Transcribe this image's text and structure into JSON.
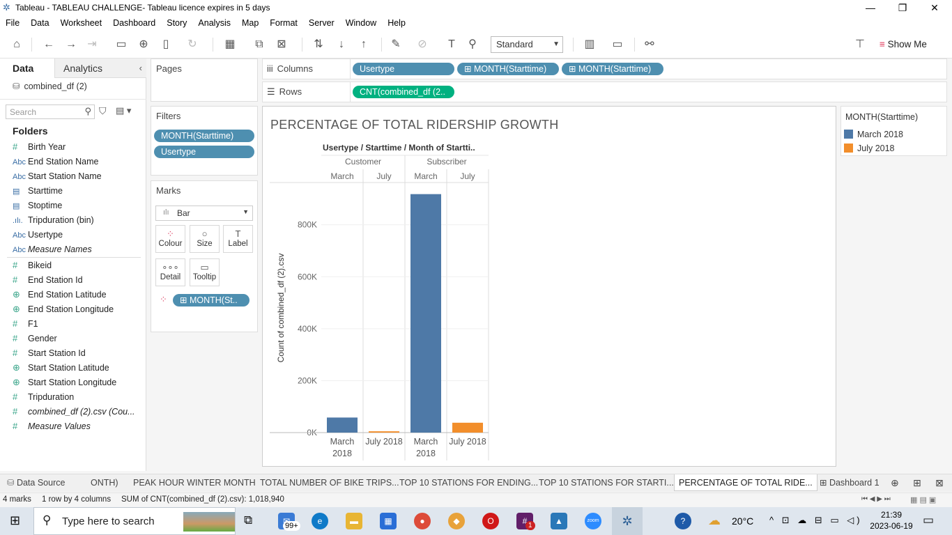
{
  "window": {
    "title": "Tableau - TABLEAU CHALLENGE- Tableau licence expires in 5 days"
  },
  "menu": [
    "File",
    "Data",
    "Worksheet",
    "Dashboard",
    "Story",
    "Analysis",
    "Map",
    "Format",
    "Server",
    "Window",
    "Help"
  ],
  "toolbar": {
    "fit_value": "Standard",
    "show_me_label": "Show Me"
  },
  "left_pane": {
    "tab_data": "Data",
    "tab_analytics": "Analytics",
    "datasource": "combined_df (2)",
    "search_placeholder": "Search",
    "folders_label": "Folders",
    "dimensions": [
      {
        "icon": "#",
        "name": "Birth Year"
      },
      {
        "icon": "Abc",
        "name": "End Station Name"
      },
      {
        "icon": "Abc",
        "name": "Start Station Name"
      },
      {
        "icon": "cal",
        "name": "Starttime"
      },
      {
        "icon": "cal",
        "name": "Stoptime"
      },
      {
        "icon": "bin",
        "name": "Tripduration (bin)"
      },
      {
        "icon": "Abc",
        "name": "Usertype"
      },
      {
        "icon": "Abc",
        "name": "Measure Names"
      }
    ],
    "measures": [
      {
        "icon": "#",
        "name": "Bikeid"
      },
      {
        "icon": "#",
        "name": "End Station Id"
      },
      {
        "icon": "globe",
        "name": "End Station Latitude"
      },
      {
        "icon": "globe",
        "name": "End Station Longitude"
      },
      {
        "icon": "#",
        "name": "F1"
      },
      {
        "icon": "#",
        "name": "Gender"
      },
      {
        "icon": "#",
        "name": "Start Station Id"
      },
      {
        "icon": "globe",
        "name": "Start Station Latitude"
      },
      {
        "icon": "globe",
        "name": "Start Station Longitude"
      },
      {
        "icon": "#",
        "name": "Tripduration"
      },
      {
        "icon": "#",
        "name": "combined_df (2).csv (Cou..."
      },
      {
        "icon": "#",
        "name": "Measure Values"
      }
    ]
  },
  "cards": {
    "pages_label": "Pages",
    "filters_label": "Filters",
    "filters": [
      "MONTH(Starttime)",
      "Usertype"
    ],
    "marks_label": "Marks",
    "mark_type": "Bar",
    "mark_buttons": [
      "Colour",
      "Size",
      "Label",
      "Detail",
      "Tooltip"
    ],
    "colour_pill": "MONTH(St.."
  },
  "shelves": {
    "columns_label": "Columns",
    "columns": [
      "Usertype",
      "MONTH(Starttime)",
      "MONTH(Starttime)"
    ],
    "rows_label": "Rows",
    "rows": [
      "CNT(combined_df (2.."
    ]
  },
  "viz": {
    "title": "PERCENTAGE OF TOTAL RIDERSHIP GROWTH",
    "header_path": "Usertype / Starttime / Month of Startti..",
    "groups": [
      "Customer",
      "Subscriber"
    ],
    "months_top": [
      "March",
      "July",
      "March",
      "July"
    ],
    "bottom_labels": [
      [
        "March",
        "2018"
      ],
      [
        "July 2018"
      ],
      [
        "March",
        "2018"
      ],
      [
        "July 2018"
      ]
    ]
  },
  "chart_data": {
    "type": "bar",
    "title": "PERCENTAGE OF TOTAL RIDERSHIP GROWTH",
    "ylabel": "Count of combined_df (2).csv",
    "ylim": [
      0,
      960000
    ],
    "yticks": [
      0,
      200000,
      400000,
      600000,
      800000
    ],
    "ytick_labels": [
      "0K",
      "200K",
      "400K",
      "600K",
      "800K"
    ],
    "grid": true,
    "categories": [
      "Customer March 2018",
      "Customer July 2018",
      "Subscriber March 2018",
      "Subscriber July 2018"
    ],
    "values": [
      58000,
      5000,
      918000,
      38000
    ],
    "colors": [
      "#4e79a7",
      "#f28e2b",
      "#4e79a7",
      "#f28e2b"
    ]
  },
  "legend": {
    "title": "MONTH(Starttime)",
    "items": [
      {
        "label": "March 2018",
        "color": "#4e79a7"
      },
      {
        "label": "July 2018",
        "color": "#f28e2b"
      }
    ]
  },
  "sheet_tabs": {
    "data_source": "Data Source",
    "tabs": [
      "ONTH)",
      "PEAK HOUR WINTER MONTH",
      "TOTAL NUMBER OF BIKE TRIPS...",
      "TOP 10 STATIONS FOR ENDING...",
      "TOP 10 STATIONS FOR STARTI...",
      "PERCENTAGE OF TOTAL RIDE...",
      "Dashboard 1"
    ]
  },
  "status": {
    "marks": "4 marks",
    "dims": "1 row by 4 columns",
    "sum": "SUM of CNT(combined_df (2).csv): 1,018,940"
  },
  "taskbar": {
    "search_text": "Type here to search",
    "mail_badge": "99+",
    "slack_badge": "1",
    "temperature": "20°C",
    "time": "21:39",
    "date": "2023-06-19"
  }
}
